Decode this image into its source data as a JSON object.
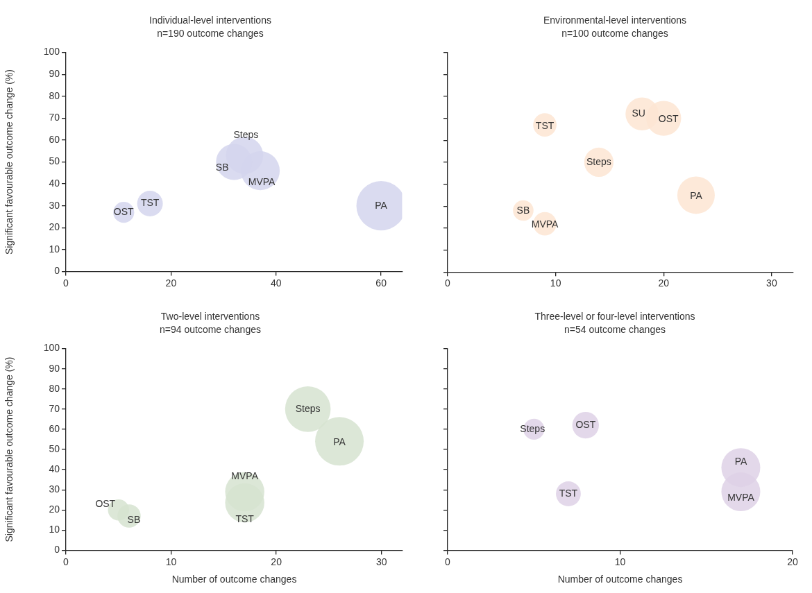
{
  "chart_data": [
    {
      "type": "bubble",
      "title": "Individual-level interventions",
      "subtitle": "n=190 outcome changes",
      "ylabel": "Significant favourable outcome change (%)",
      "xlim": [
        0,
        64
      ],
      "xticks": [
        0,
        20,
        40,
        60
      ],
      "ylim": [
        0,
        100
      ],
      "yticks": [
        0,
        10,
        20,
        30,
        40,
        50,
        60,
        70,
        80,
        90,
        100
      ],
      "series": [
        {
          "name": "OST",
          "color": "#d3d5ed",
          "x": [
            11
          ],
          "values": [
            27
          ],
          "sizes": [
            0.18
          ]
        },
        {
          "name": "TST",
          "color": "#d3d5ed",
          "x": [
            16
          ],
          "values": [
            31
          ],
          "sizes": [
            0.27
          ]
        },
        {
          "name": "SB",
          "color": "#d3d5ed",
          "x": [
            32
          ],
          "values": [
            50
          ],
          "sizes": [
            0.53
          ]
        },
        {
          "name": "Steps",
          "color": "#d3d5ed",
          "x": [
            34
          ],
          "values": [
            53
          ],
          "sizes": [
            0.57
          ]
        },
        {
          "name": "MVPA",
          "color": "#d3d5ed",
          "x": [
            37
          ],
          "values": [
            46
          ],
          "sizes": [
            0.62
          ]
        },
        {
          "name": "PA",
          "color": "#d3d5ed",
          "x": [
            60
          ],
          "values": [
            30
          ],
          "sizes": [
            1
          ]
        }
      ]
    },
    {
      "type": "bubble",
      "title": "Environmental-level interventions",
      "subtitle": "n=100 outcome changes",
      "xlim": [
        0,
        32
      ],
      "xticks": [
        0,
        10,
        20,
        30
      ],
      "ylim": [
        0,
        100
      ],
      "yticks": [
        0,
        10,
        20,
        30,
        40,
        50,
        60,
        70,
        80,
        90,
        100
      ],
      "tick_labels": "x",
      "series": [
        {
          "name": "TST",
          "color": "#fde5d2",
          "x": [
            9
          ],
          "values": [
            67
          ],
          "sizes": [
            0.39
          ]
        },
        {
          "name": "SU",
          "color": "#fde5d2",
          "x": [
            18
          ],
          "values": [
            72
          ],
          "sizes": [
            0.78
          ]
        },
        {
          "name": "OST",
          "color": "#fde5d2",
          "x": [
            20
          ],
          "values": [
            70
          ],
          "sizes": [
            0.87
          ]
        },
        {
          "name": "Steps",
          "color": "#fde5d2",
          "x": [
            14
          ],
          "values": [
            50
          ],
          "sizes": [
            0.61
          ]
        },
        {
          "name": "PA",
          "color": "#fde5d2",
          "x": [
            23
          ],
          "values": [
            35
          ],
          "sizes": [
            1
          ]
        },
        {
          "name": "SB",
          "color": "#fde5d2",
          "x": [
            7
          ],
          "values": [
            28
          ],
          "sizes": [
            0.3
          ]
        },
        {
          "name": "MVPA",
          "color": "#fde5d2",
          "x": [
            9
          ],
          "values": [
            22
          ],
          "sizes": [
            0.39
          ]
        }
      ]
    },
    {
      "type": "bubble",
      "title": "Two-level interventions",
      "subtitle": "n=94 outcome changes",
      "xlabel": "Number of outcome changes",
      "ylabel": "Significant favourable outcome change (%)",
      "xlim": [
        0,
        32
      ],
      "xticks": [
        0,
        10,
        20,
        30
      ],
      "ylim": [
        0,
        100
      ],
      "yticks": [
        0,
        10,
        20,
        30,
        40,
        50,
        60,
        70,
        80,
        90,
        100
      ],
      "series": [
        {
          "name": "OST",
          "color": "#d6e3d0",
          "x": [
            5
          ],
          "values": [
            20
          ],
          "sizes": [
            0.19
          ]
        },
        {
          "name": "SB",
          "color": "#d6e3d0",
          "x": [
            6
          ],
          "values": [
            17
          ],
          "sizes": [
            0.23
          ]
        },
        {
          "name": "MVPA",
          "color": "#d6e3d0",
          "x": [
            17
          ],
          "values": [
            29
          ],
          "sizes": [
            0.65
          ]
        },
        {
          "name": "TST",
          "color": "#d6e3d0",
          "x": [
            17
          ],
          "values": [
            23.5
          ],
          "sizes": [
            0.65
          ]
        },
        {
          "name": "Steps",
          "color": "#d6e3d0",
          "x": [
            23
          ],
          "values": [
            70
          ],
          "sizes": [
            0.88
          ]
        },
        {
          "name": "PA",
          "color": "#d6e3d0",
          "x": [
            26
          ],
          "values": [
            54
          ],
          "sizes": [
            1
          ]
        }
      ]
    },
    {
      "type": "bubble",
      "title": "Three-level or four-level interventions",
      "subtitle": "n=54 outcome changes",
      "xlabel": "Number of outcome changes",
      "xlim": [
        0,
        20
      ],
      "xticks": [
        0,
        10,
        20
      ],
      "ylim": [
        0,
        100
      ],
      "yticks": [
        0,
        10,
        20,
        30,
        40,
        50,
        60,
        70,
        80,
        90,
        100
      ],
      "tick_labels": "x",
      "series": [
        {
          "name": "Steps",
          "color": "#ded1e6",
          "x": [
            5
          ],
          "values": [
            60
          ],
          "sizes": [
            0.29
          ]
        },
        {
          "name": "OST",
          "color": "#ded1e6",
          "x": [
            8
          ],
          "values": [
            62
          ],
          "sizes": [
            0.47
          ]
        },
        {
          "name": "TST",
          "color": "#ded1e6",
          "x": [
            7
          ],
          "values": [
            28
          ],
          "sizes": [
            0.41
          ]
        },
        {
          "name": "PA",
          "color": "#ded1e6",
          "x": [
            17
          ],
          "values": [
            41
          ],
          "sizes": [
            1
          ]
        },
        {
          "name": "MVPA",
          "color": "#ded1e6",
          "x": [
            17
          ],
          "values": [
            29
          ],
          "sizes": [
            1
          ]
        }
      ]
    }
  ]
}
